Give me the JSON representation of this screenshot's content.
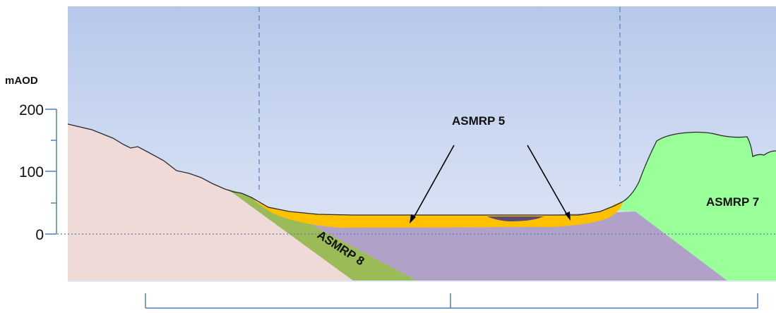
{
  "axis": {
    "unit_label": "mAOD",
    "ticks": [
      "200",
      "100",
      "0"
    ]
  },
  "labels": {
    "asmrp5": "ASMRP 5",
    "asmrp7": "ASMRP 7",
    "asmrp8": "ASMRP 8"
  },
  "colors": {
    "sky_top": "#b6c8ea",
    "sky_bottom": "#dfe6f7",
    "left_bedrock": "#efdad8",
    "green_layer": "#9bbb59",
    "purple_layer": "#b1a0c7",
    "right_hill": "#99ff99",
    "alluvium": "#ffc000",
    "water": "#5c4b7a",
    "axis_color": "#4f81bd"
  }
}
